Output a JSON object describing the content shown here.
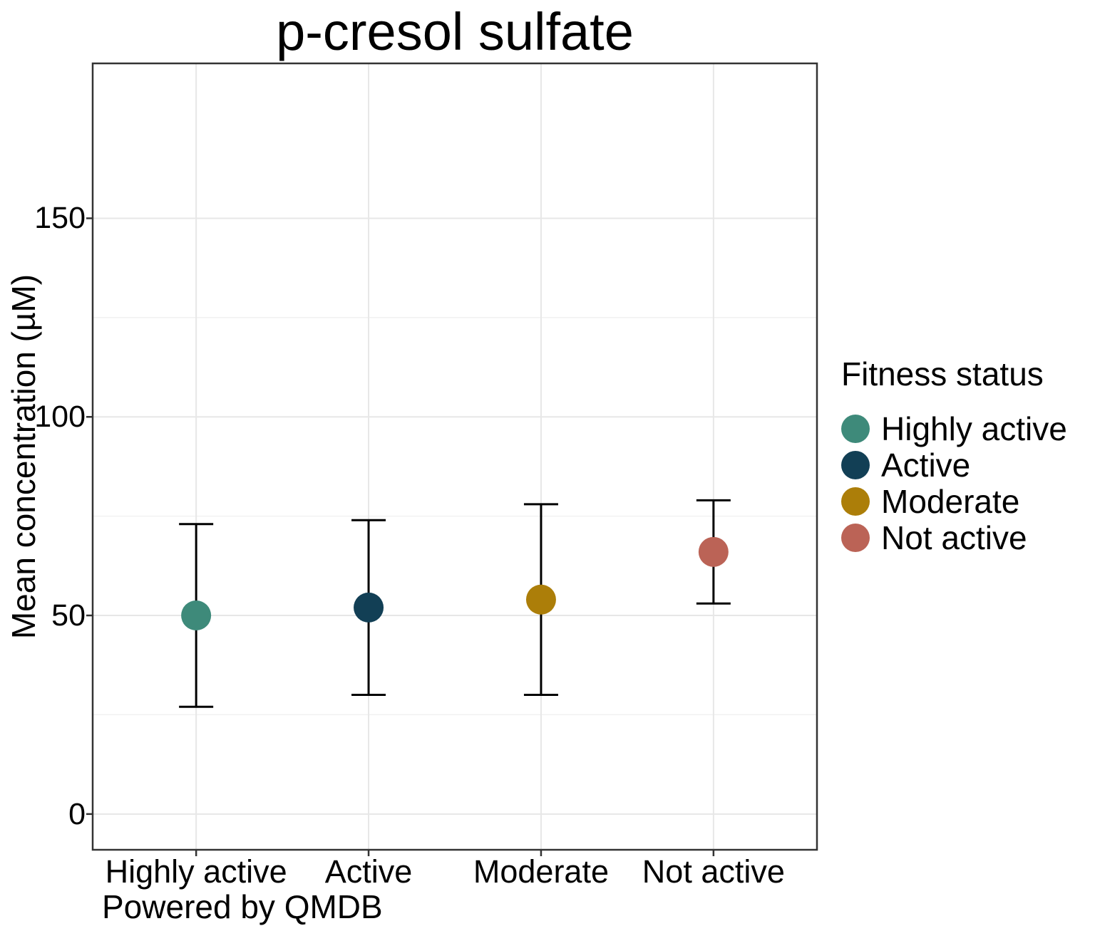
{
  "chart_data": {
    "type": "scatter",
    "title": "p-cresol sulfate",
    "xlabel": "",
    "ylabel": "Mean concentration (µM)",
    "caption": "Powered by QMDB",
    "categories": [
      "Highly active",
      "Active",
      "Moderate",
      "Not active"
    ],
    "points": [
      {
        "category": "Highly active",
        "mean": 50,
        "lower": 27,
        "upper": 73,
        "color": "#3E8A7A"
      },
      {
        "category": "Active",
        "mean": 52,
        "lower": 30,
        "upper": 74,
        "color": "#123F55"
      },
      {
        "category": "Moderate",
        "mean": 54,
        "lower": 30,
        "upper": 78,
        "color": "#AC7E09"
      },
      {
        "category": "Not active",
        "mean": 66,
        "lower": 53,
        "upper": 79,
        "color": "#BB6356"
      }
    ],
    "yticks": [
      0,
      50,
      100,
      150
    ],
    "yticks_minor": [
      25,
      75,
      125
    ],
    "ylim": [
      -9,
      189
    ],
    "grid": true,
    "colors": {
      "grid_major": "#E7E7E7",
      "grid_minor": "#F1F1F1",
      "panel_border": "#333333",
      "error_bar": "#000000",
      "text": "#000000"
    },
    "legend": {
      "title": "Fitness status",
      "position": "right",
      "entries": [
        {
          "label": "Highly active",
          "color": "#3E8A7A"
        },
        {
          "label": "Active",
          "color": "#123F55"
        },
        {
          "label": "Moderate",
          "color": "#AC7E09"
        },
        {
          "label": "Not active",
          "color": "#BB6356"
        }
      ]
    }
  }
}
